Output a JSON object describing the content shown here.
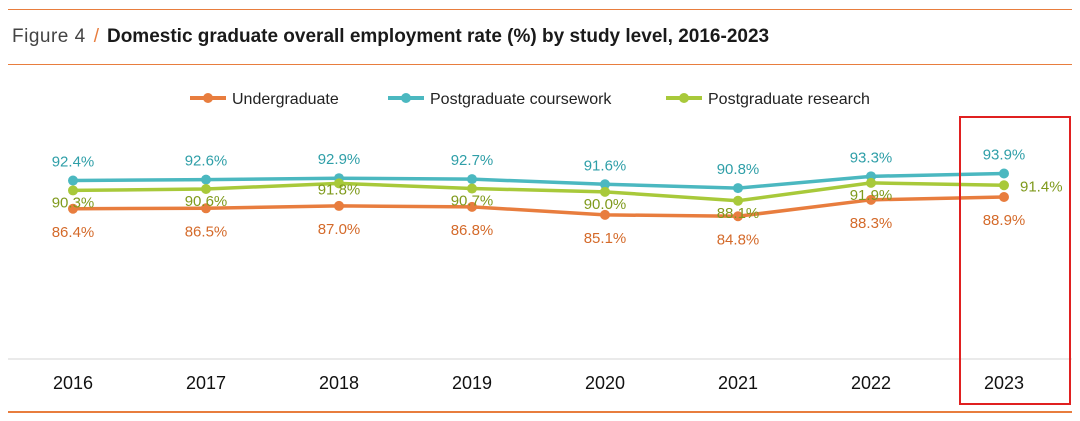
{
  "header": {
    "figure_label": "Figure 4",
    "title": "Domestic graduate overall employment rate (%) by study level, 2016-2023"
  },
  "chart_data": {
    "type": "line",
    "title": "Domestic graduate overall employment rate (%) by study level, 2016-2023",
    "categories": [
      "2016",
      "2017",
      "2018",
      "2019",
      "2020",
      "2021",
      "2022",
      "2023"
    ],
    "series": [
      {
        "name": "Undergraduate",
        "color": "#e87d3e",
        "values": [
          86.4,
          86.5,
          87.0,
          86.8,
          85.1,
          84.8,
          88.3,
          88.9
        ],
        "labels": [
          "86.4%",
          "86.5%",
          "87.0%",
          "86.8%",
          "85.1%",
          "84.8%",
          "88.3%",
          "88.9%"
        ]
      },
      {
        "name": "Postgraduate coursework",
        "color": "#4bb8c0",
        "values": [
          92.4,
          92.6,
          92.9,
          92.7,
          91.6,
          90.8,
          93.3,
          93.9
        ],
        "labels": [
          "92.4%",
          "92.6%",
          "92.9%",
          "92.7%",
          "91.6%",
          "90.8%",
          "93.3%",
          "93.9%"
        ]
      },
      {
        "name": "Postgraduate research",
        "color": "#a8c93a",
        "values": [
          90.3,
          90.6,
          91.8,
          90.7,
          90.0,
          88.1,
          91.9,
          91.4
        ],
        "labels": [
          "90.3%",
          "90.6%",
          "91.8%",
          "90.7%",
          "90.0%",
          "88.1%",
          "91.9%",
          "91.4%"
        ]
      }
    ],
    "legend_position": "top-center",
    "highlight": {
      "category": "2023",
      "color": "#e02020"
    },
    "grid": false
  }
}
